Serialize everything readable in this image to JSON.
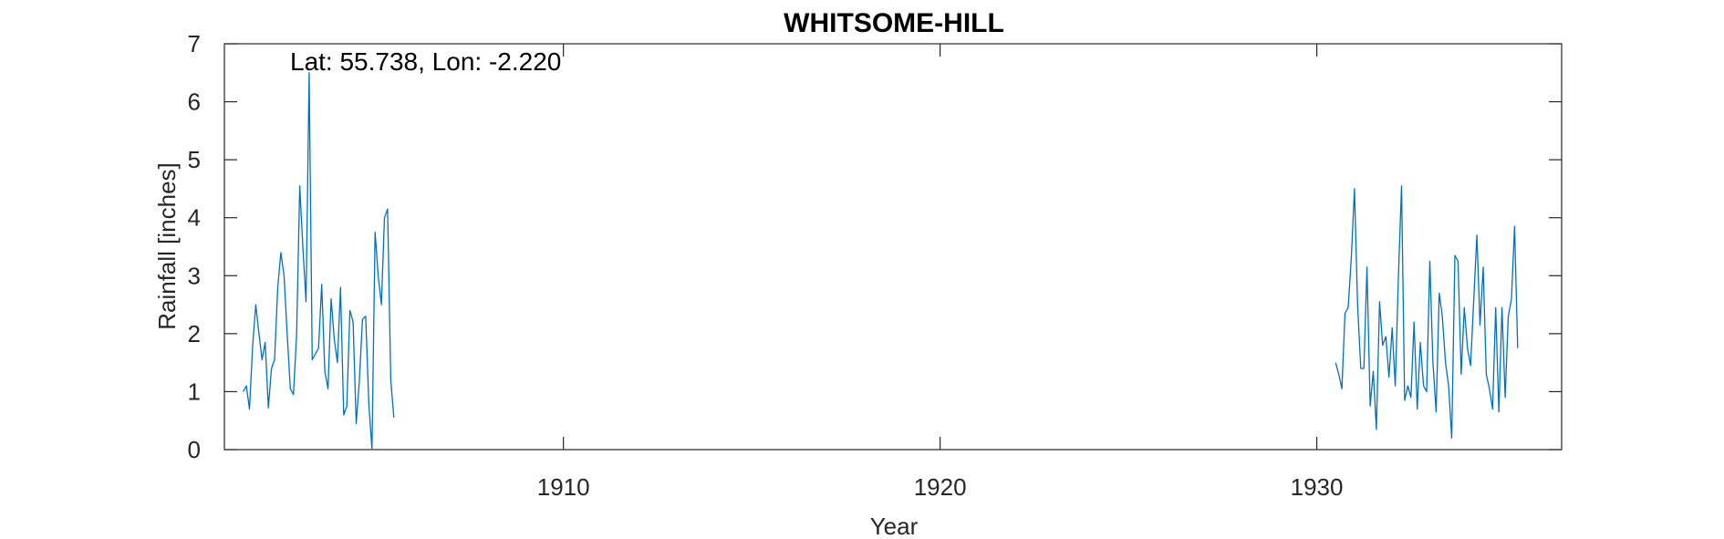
{
  "chart_data": {
    "type": "line",
    "title": "WHITSOME-HILL",
    "xlabel": "Year",
    "ylabel": "Rainfall [inches]",
    "annotation": "Lat: 55.738, Lon: -2.220",
    "xlim": [
      1901,
      1936.5
    ],
    "ylim": [
      0,
      7
    ],
    "xticks": [
      1910,
      1920,
      1930
    ],
    "xtick_labels": [
      "1910",
      "1920",
      "1930"
    ],
    "yticks": [
      0,
      1,
      2,
      3,
      4,
      5,
      6,
      7
    ],
    "ytick_labels": [
      "0",
      "1",
      "2",
      "3",
      "4",
      "5",
      "6",
      "7"
    ],
    "grid": false,
    "line_color": "#0072BD",
    "series": [
      {
        "segments": [
          {
            "x": [
              1901.5,
              1901.583,
              1901.667,
              1901.75,
              1901.833,
              1901.917,
              1902.0,
              1902.083,
              1902.167,
              1902.25,
              1902.333,
              1902.417,
              1902.5,
              1902.583,
              1902.667,
              1902.75,
              1902.833,
              1902.917,
              1903.0,
              1903.083,
              1903.167,
              1903.25,
              1903.333,
              1903.417,
              1903.5,
              1903.583,
              1903.667,
              1903.75,
              1903.833,
              1903.917,
              1904.0,
              1904.083,
              1904.167,
              1904.25,
              1904.333,
              1904.417,
              1904.5,
              1904.583,
              1904.667,
              1904.75,
              1904.833,
              1904.917,
              1905.0,
              1905.083,
              1905.167,
              1905.25,
              1905.333,
              1905.417,
              1905.5
            ],
            "y": [
              1.0,
              1.1,
              0.7,
              1.8,
              2.5,
              2.0,
              1.55,
              1.85,
              0.72,
              1.4,
              1.55,
              2.8,
              3.4,
              3.0,
              2.0,
              1.05,
              0.95,
              2.0,
              4.55,
              3.5,
              2.55,
              6.5,
              1.55,
              1.65,
              1.75,
              2.85,
              1.35,
              1.05,
              2.6,
              1.9,
              1.5,
              2.8,
              0.6,
              0.75,
              2.4,
              2.2,
              0.45,
              1.2,
              2.25,
              2.3,
              0.8,
              0.0,
              3.75,
              3.0,
              2.5,
              4.0,
              4.15,
              1.2,
              0.55
            ]
          },
          {
            "x": [
              1930.5,
              1930.583,
              1930.667,
              1930.75,
              1930.833,
              1930.917,
              1931.0,
              1931.083,
              1931.167,
              1931.25,
              1931.333,
              1931.417,
              1931.5,
              1931.583,
              1931.667,
              1931.75,
              1931.833,
              1931.917,
              1932.0,
              1932.083,
              1932.167,
              1932.25,
              1932.333,
              1932.417,
              1932.5,
              1932.583,
              1932.667,
              1932.75,
              1932.833,
              1932.917,
              1933.0,
              1933.083,
              1933.167,
              1933.25,
              1933.333,
              1933.417,
              1933.5,
              1933.583,
              1933.667,
              1933.75,
              1933.833,
              1933.917,
              1934.0,
              1934.083,
              1934.167,
              1934.25,
              1934.333,
              1934.417,
              1934.5,
              1934.583,
              1934.667,
              1934.75,
              1934.833,
              1934.917,
              1935.0,
              1935.083,
              1935.167,
              1935.25,
              1935.333
            ],
            "y": [
              1.5,
              1.3,
              1.05,
              2.35,
              2.45,
              3.3,
              4.5,
              2.5,
              1.4,
              1.4,
              3.15,
              0.75,
              1.35,
              0.35,
              2.55,
              1.8,
              1.95,
              1.25,
              2.1,
              1.1,
              3.0,
              4.55,
              0.85,
              1.1,
              0.9,
              2.2,
              0.7,
              1.85,
              1.1,
              1.0,
              3.25,
              1.5,
              0.65,
              2.7,
              2.3,
              1.5,
              1.1,
              0.2,
              3.35,
              3.25,
              1.3,
              2.45,
              1.75,
              1.45,
              2.6,
              3.7,
              2.15,
              3.15,
              1.3,
              1.05,
              0.7,
              2.45,
              0.65,
              2.45,
              0.9,
              2.3,
              2.6,
              3.85,
              1.75
            ]
          }
        ]
      }
    ]
  }
}
